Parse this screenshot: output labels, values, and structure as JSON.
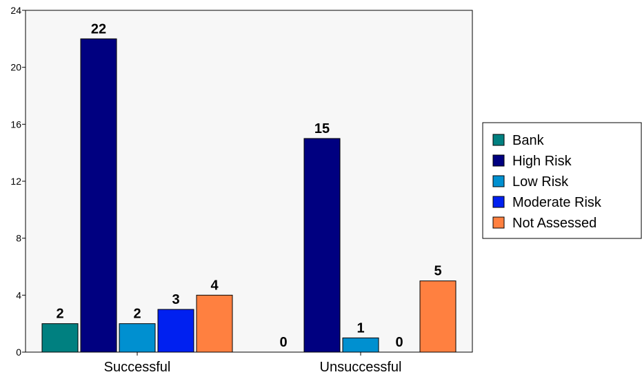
{
  "chart_data": {
    "type": "bar",
    "categories": [
      "Successful",
      "Unsuccessful"
    ],
    "series": [
      {
        "name": "Bank",
        "values": [
          2,
          0
        ],
        "color": "#008080"
      },
      {
        "name": "High Risk",
        "values": [
          22,
          15
        ],
        "color": "#000080"
      },
      {
        "name": "Low Risk",
        "values": [
          2,
          1
        ],
        "color": "#0090D0"
      },
      {
        "name": "Moderate Risk",
        "values": [
          3,
          0
        ],
        "color": "#0020F0"
      },
      {
        "name": "Not Assessed",
        "values": [
          4,
          5
        ],
        "color": "#FF8040"
      }
    ],
    "title": "",
    "xlabel": "",
    "ylabel": "",
    "ylim": [
      0,
      24
    ],
    "yticks": [
      0,
      4,
      8,
      12,
      16,
      20,
      24
    ],
    "grid": false,
    "legend": "right",
    "plot_background": "#F7F7F7"
  }
}
